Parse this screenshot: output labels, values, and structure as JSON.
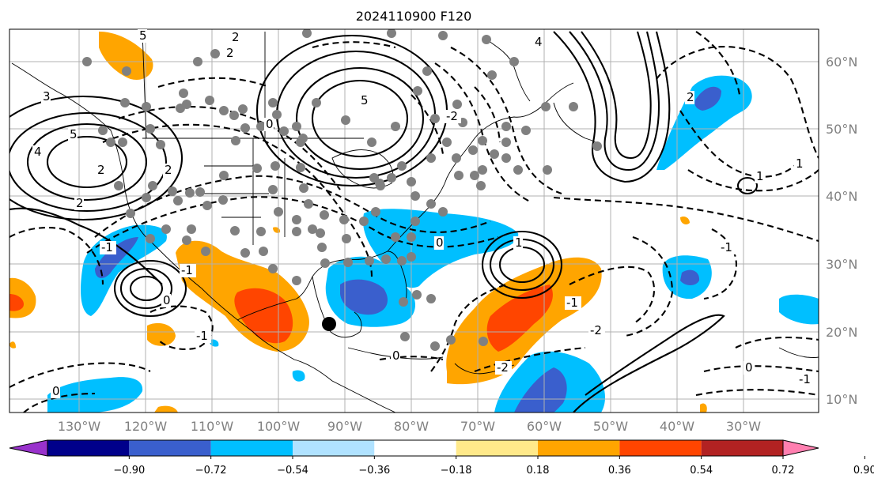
{
  "title": "2024110900 F120",
  "map": {
    "lon_labels": [
      "130°W",
      "120°W",
      "110°W",
      "100°W",
      "90°W",
      "80°W",
      "70°W",
      "60°W",
      "50°W",
      "40°W",
      "30°W"
    ],
    "lat_labels": [
      "60°N",
      "50°N",
      "40°N",
      "30°N",
      "20°N",
      "10°N"
    ],
    "contour_labels": [
      "2",
      "5",
      "4",
      "3",
      "5",
      "2",
      "0",
      "-2",
      "2",
      "-1",
      "5",
      "4",
      "2",
      "1",
      "2",
      "1",
      "-1",
      "-2",
      "0",
      "0",
      "-1",
      "-1",
      "1",
      "0",
      "-1",
      "-2",
      "2",
      "0",
      "-1",
      "0"
    ],
    "marker": {
      "label": "",
      "lon": -92.2,
      "lat": 20.8
    }
  },
  "colorbar": {
    "ticks": [
      "−0.90",
      "−0.72",
      "−0.54",
      "−0.36",
      "−0.18",
      "0.18",
      "0.36",
      "0.54",
      "0.72",
      "0.90"
    ],
    "colors": [
      "#9932cc",
      "#00008b",
      "#3a5fcd",
      "#00bfff",
      "#b0e2ff",
      "#ffffff",
      "#ffe98a",
      "#ffa500",
      "#ff4500",
      "#b22222",
      "#ff7fb0"
    ]
  },
  "colors": {
    "negative_strong": "#3a5fcd",
    "negative": "#00bfff",
    "positive": "#ffa500",
    "positive_strong": "#ff4500",
    "station": "#808080",
    "grid": "#b0b0b0"
  }
}
